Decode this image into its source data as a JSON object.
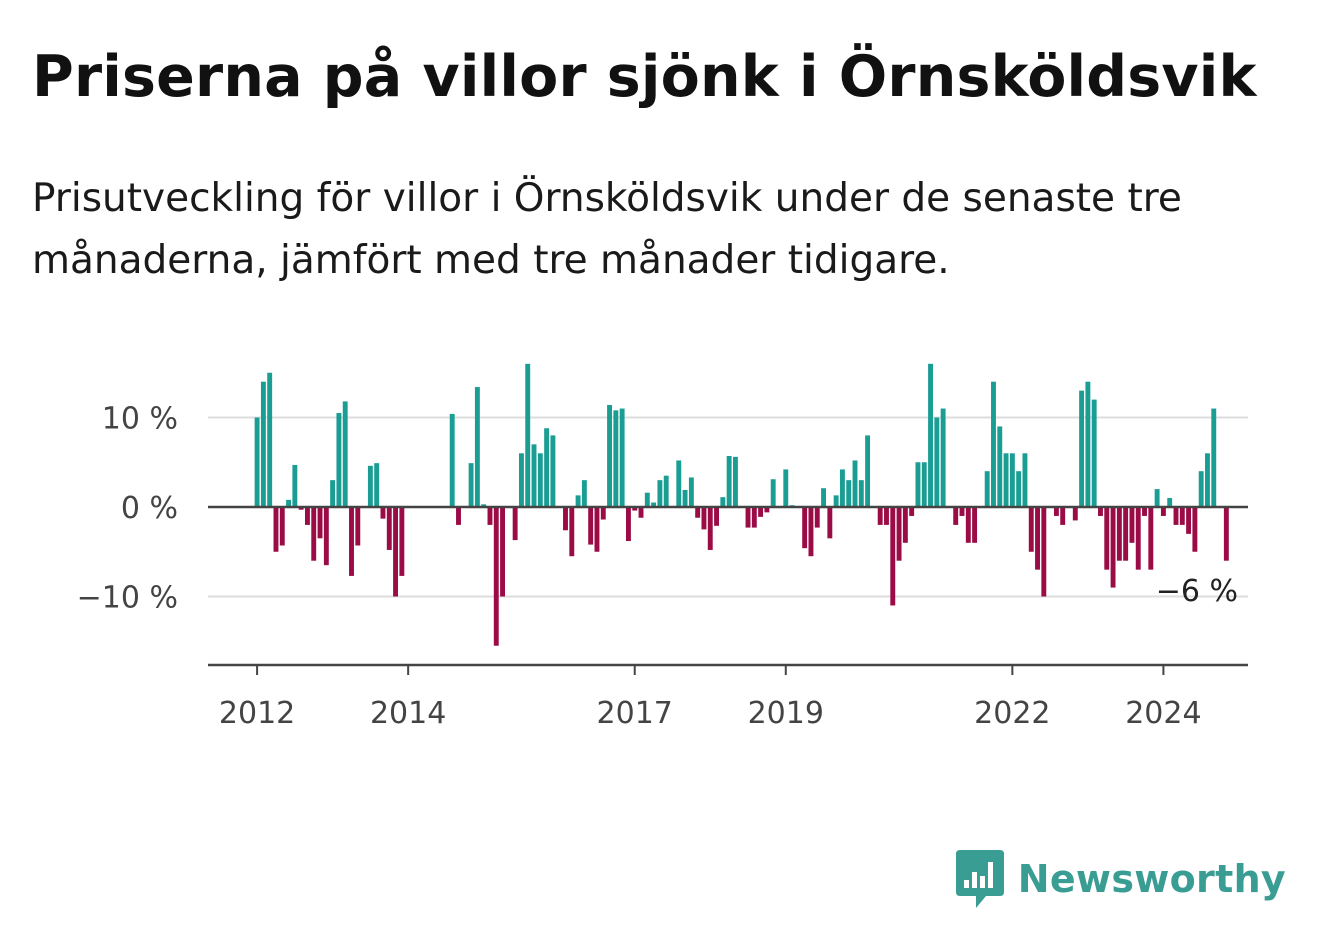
{
  "header": {
    "title": "Priserna på villor sjönk i Örnsköldsvik",
    "subtitle": "Prisutveckling för villor i Örnsköldsvik under de senaste tre månaderna, jämfört med tre månader tidigare."
  },
  "brand": {
    "name": "Newsworthy",
    "icon": "bar-chart-speech-bubble-icon",
    "color": "#3a9d93"
  },
  "chart_data": {
    "type": "bar",
    "title": "Priserna på villor sjönk i Örnsköldsvik",
    "subtitle": "Prisutveckling för villor i Örnsköldsvik under de senaste tre månaderna, jämfört med tre månader tidigare.",
    "xlabel": "",
    "ylabel": "",
    "x_range": [
      2011.35,
      2025.12
    ],
    "ylim": [
      -17.5,
      17.5
    ],
    "y_ticks": [
      {
        "value": 10,
        "label": "10 %"
      },
      {
        "value": 0,
        "label": "0 %"
      },
      {
        "value": -10,
        "label": "−10 %"
      }
    ],
    "x_ticks": [
      {
        "value": 2012,
        "label": "2012"
      },
      {
        "value": 2014,
        "label": "2014"
      },
      {
        "value": 2017,
        "label": "2017"
      },
      {
        "value": 2019,
        "label": "2019"
      },
      {
        "value": 2022,
        "label": "2022"
      },
      {
        "value": 2024,
        "label": "2024"
      }
    ],
    "grid": true,
    "colors": {
      "positive": "#1a9e93",
      "negative": "#9b0b45",
      "grid": "#dddddd",
      "axis": "#444444"
    },
    "start": "2012-01",
    "interval": "month",
    "values": [
      10,
      14,
      15,
      -5,
      -4.3,
      0.8,
      4.7,
      -0.3,
      -2,
      -6,
      -3.5,
      -6.5,
      3,
      10.5,
      11.8,
      -7.7,
      -4.3,
      0,
      4.6,
      4.9,
      -1.3,
      -4.8,
      -10,
      -7.7,
      0,
      0,
      0,
      0,
      0,
      0,
      0,
      10.4,
      -2,
      0,
      4.9,
      13.4,
      0.3,
      -2,
      -15.5,
      -10,
      0,
      -3.7,
      6,
      16,
      7,
      6,
      8.8,
      8,
      0,
      -2.6,
      -5.5,
      1.3,
      3,
      -4.2,
      -5,
      -1.4,
      11.4,
      10.8,
      11,
      -3.8,
      -0.4,
      -1.2,
      1.6,
      0.5,
      3,
      3.5,
      0,
      5.2,
      1.9,
      3.3,
      -1.2,
      -2.5,
      -4.8,
      -2.1,
      1.1,
      5.7,
      5.6,
      0,
      -2.3,
      -2.3,
      -1.1,
      -0.6,
      3.1,
      0,
      4.2,
      0.2,
      0,
      -4.6,
      -5.5,
      -2.3,
      2.1,
      -3.5,
      1.3,
      4.2,
      3,
      5.2,
      3,
      8,
      0,
      -2,
      -2,
      -11,
      -6,
      -4,
      -1,
      5,
      5,
      16,
      10,
      11,
      0,
      -2,
      -1,
      -4,
      -4,
      0,
      4,
      14,
      9,
      6,
      6,
      4,
      6,
      -5,
      -7,
      -10,
      0,
      -1,
      -2,
      0,
      -1.5,
      13,
      14,
      12,
      -1,
      -7,
      -9,
      -6,
      -6,
      -4,
      -7,
      -1,
      -7,
      2,
      -1,
      1,
      -2,
      -2,
      -3,
      -5,
      4,
      6,
      11,
      0,
      -6
    ],
    "last_value_label": "−6 %"
  }
}
